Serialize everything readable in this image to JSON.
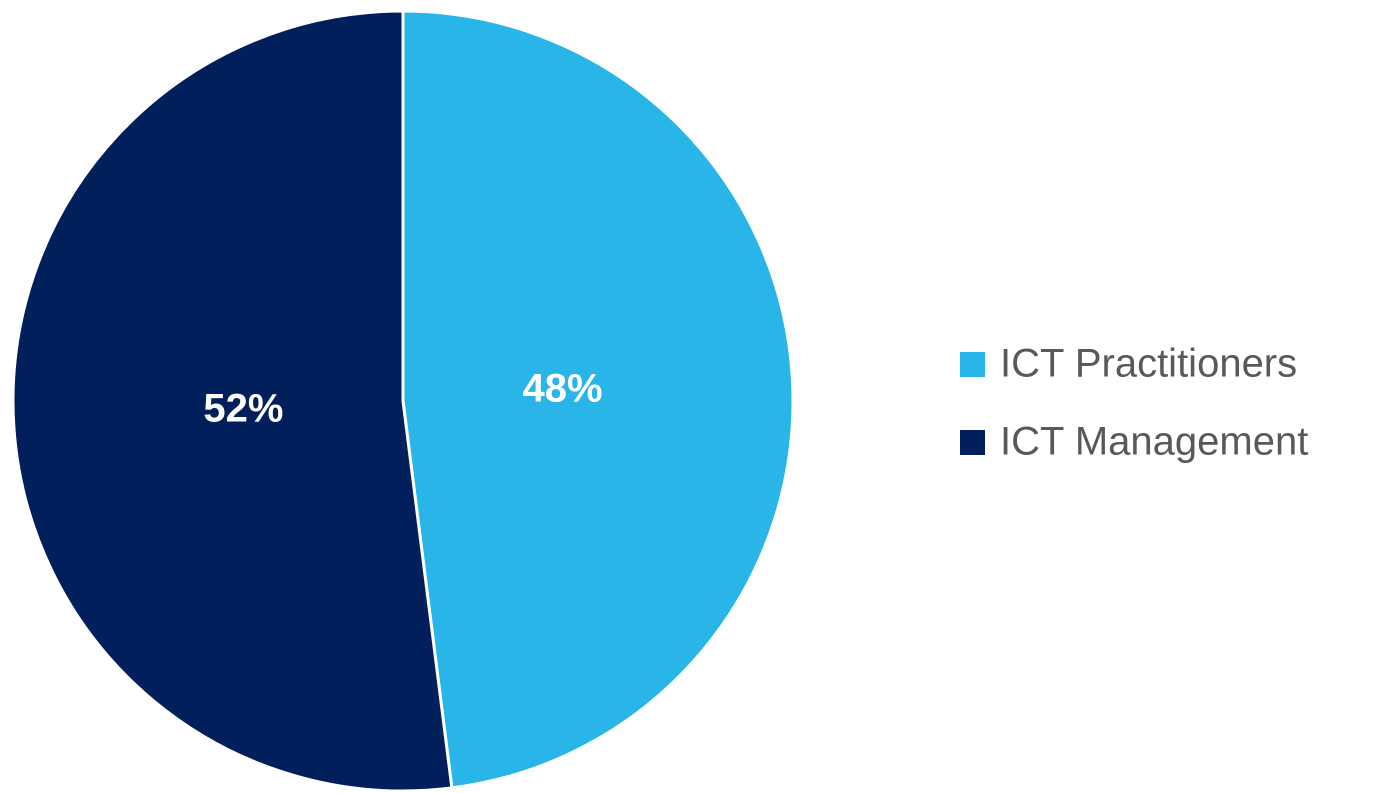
{
  "chart_data": {
    "type": "pie",
    "categories": [
      "ICT Practitioners",
      "ICT Management"
    ],
    "values": [
      48,
      52
    ],
    "value_labels": [
      "48%",
      "52%"
    ],
    "colors": [
      "#29b5e8",
      "#001f5b"
    ],
    "legend": "right"
  }
}
